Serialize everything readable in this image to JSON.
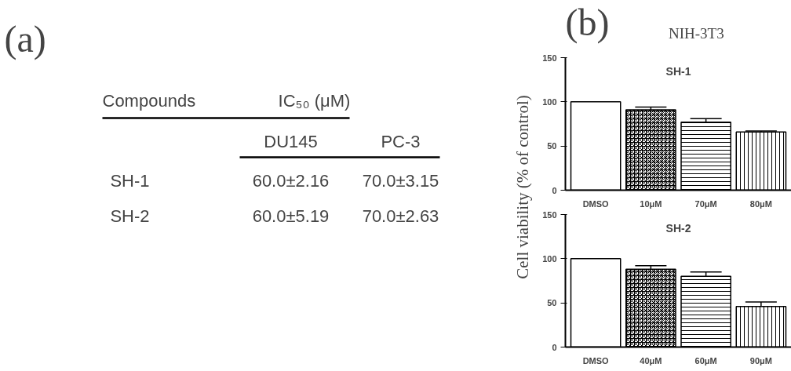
{
  "chart_data": [
    {
      "type": "other",
      "title": "(a)",
      "annotations": [
        "Compounds",
        "IC₅₀ (μM)",
        "DU145",
        "PC-3",
        "SH-1",
        "60.0±2.16",
        "70.0±3.15",
        "SH-2",
        "60.0±5.19",
        "70.0±2.63"
      ]
    },
    {
      "type": "bar",
      "title": "SH-1",
      "annotations": [
        "(b)",
        "NIH-3T3"
      ],
      "ylabel": "Cell viability (% of control)",
      "categories": [
        "DMSO",
        "10μM",
        "70μM",
        "80μM"
      ],
      "values": [
        100,
        91,
        77,
        66
      ],
      "errors": [
        null,
        3,
        4,
        1
      ],
      "colors": [
        "#ffffff",
        "#ffffff",
        "#ffffff",
        "#ffffff"
      ],
      "ylim": [
        0,
        150
      ],
      "yticks": [
        0,
        50,
        100,
        150
      ],
      "grid": false
    },
    {
      "type": "bar",
      "title": "SH-2",
      "categories": [
        "DMSO",
        "40μM",
        "60μM",
        "90μM"
      ],
      "values": [
        100,
        88,
        80,
        46
      ],
      "errors": [
        null,
        4,
        5,
        5
      ],
      "colors": [
        "#ffffff",
        "#ffffff",
        "#ffffff",
        "#ffffff"
      ],
      "ylim": [
        0,
        150
      ],
      "yticks": [
        0,
        50,
        100,
        150
      ],
      "grid": false
    }
  ]
}
